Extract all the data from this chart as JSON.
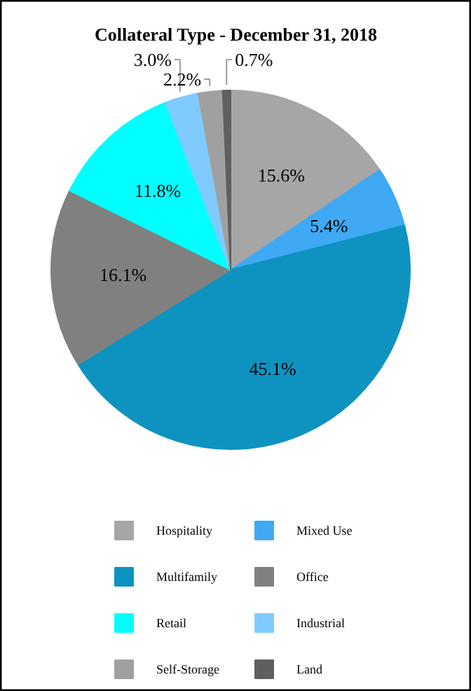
{
  "chart_data": {
    "type": "pie",
    "title": "Collateral Type - December 31, 2018",
    "categories": [
      "Hospitality",
      "Mixed Use",
      "Multifamily",
      "Office",
      "Retail",
      "Industrial",
      "Self-Storage",
      "Land"
    ],
    "values": [
      15.6,
      5.4,
      45.1,
      16.1,
      11.8,
      3.0,
      2.2,
      0.7
    ],
    "colors": [
      "#a6a6a6",
      "#3fa9f5",
      "#0e93c0",
      "#808080",
      "#00ffff",
      "#7fcbff",
      "#a0a0a0",
      "#5f5f5f"
    ],
    "value_labels": [
      "15.6%",
      "5.4%",
      "45.1%",
      "16.1%",
      "11.8%",
      "3.0%",
      "2.2%",
      "0.7%"
    ],
    "legend": "bottom"
  }
}
